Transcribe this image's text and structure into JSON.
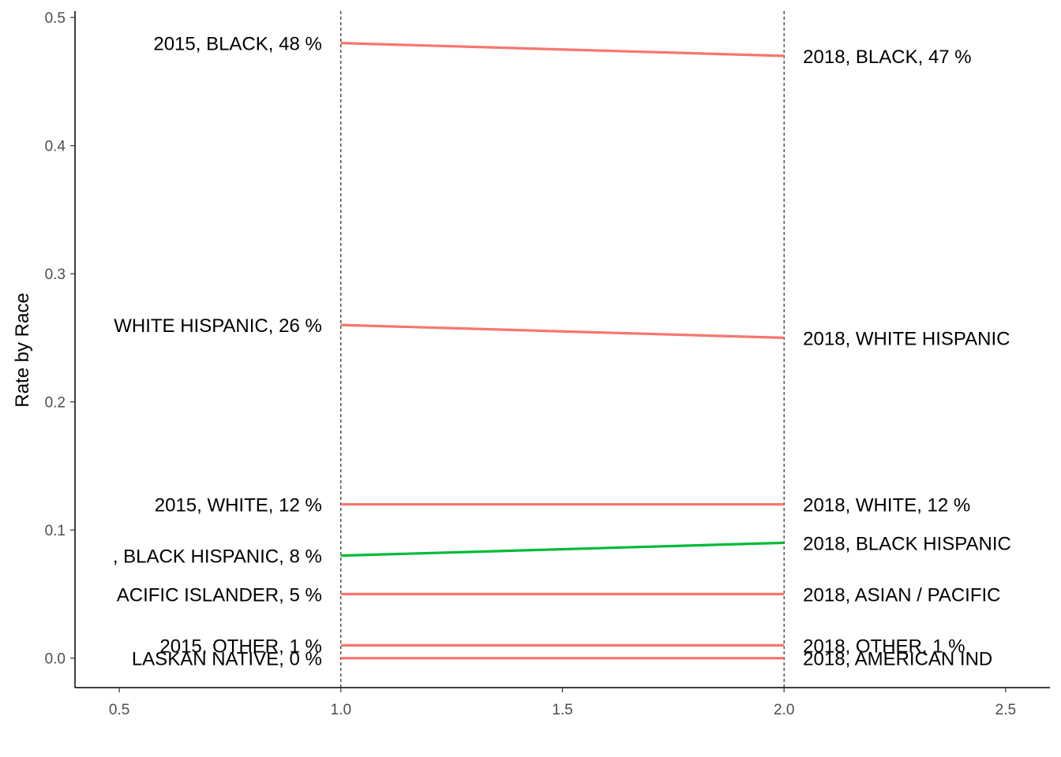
{
  "chart_data": {
    "type": "line",
    "ylabel": "Rate by Race",
    "xlabel": "",
    "xlim": [
      0.4,
      2.6
    ],
    "ylim": [
      -0.023,
      0.505
    ],
    "x_ticks": [
      0.5,
      1.0,
      1.5,
      2.0,
      2.5
    ],
    "x_tick_labels": [
      "0.5",
      "1.0",
      "1.5",
      "2.0",
      "2.5"
    ],
    "y_ticks": [
      0.0,
      0.1,
      0.2,
      0.3,
      0.4,
      0.5
    ],
    "y_tick_labels": [
      "0.0",
      "0.1",
      "0.2",
      "0.3",
      "0.4",
      "0.5"
    ],
    "vlines": [
      1.0,
      2.0
    ],
    "grid": false,
    "colors": {
      "decrease": "#F8766D",
      "increase": "#00BA38",
      "vline": "#000000"
    },
    "series": [
      {
        "x": [
          1,
          2
        ],
        "values": [
          0.48,
          0.47
        ],
        "color": "#F8766D",
        "labels": [
          "2015, BLACK, 48 %",
          "2018, BLACK, 47 %"
        ]
      },
      {
        "x": [
          1,
          2
        ],
        "values": [
          0.26,
          0.25
        ],
        "color": "#F8766D",
        "labels": [
          "WHITE HISPANIC, 26 %",
          "2018, WHITE HISPANIC"
        ]
      },
      {
        "x": [
          1,
          2
        ],
        "values": [
          0.12,
          0.12
        ],
        "color": "#F8766D",
        "labels": [
          "2015, WHITE, 12 %",
          "2018, WHITE, 12 %"
        ]
      },
      {
        "x": [
          1,
          2
        ],
        "values": [
          0.08,
          0.09
        ],
        "color": "#00BA38",
        "labels": [
          ", BLACK HISPANIC, 8 %",
          "2018, BLACK HISPANIC"
        ]
      },
      {
        "x": [
          1,
          2
        ],
        "values": [
          0.05,
          0.05
        ],
        "color": "#F8766D",
        "labels": [
          "ACIFIC ISLANDER, 5 %",
          "2018, ASIAN / PACIFIC"
        ]
      },
      {
        "x": [
          1,
          2
        ],
        "values": [
          0.01,
          0.01
        ],
        "color": "#F8766D",
        "labels": [
          "2015, OTHER, 1 %",
          "2018, OTHER, 1 %"
        ]
      },
      {
        "x": [
          1,
          2
        ],
        "values": [
          0.0,
          0.0
        ],
        "color": "#F8766D",
        "labels": [
          "LASKAN NATIVE, 0 %",
          "2018, AMERICAN IND"
        ]
      }
    ]
  }
}
